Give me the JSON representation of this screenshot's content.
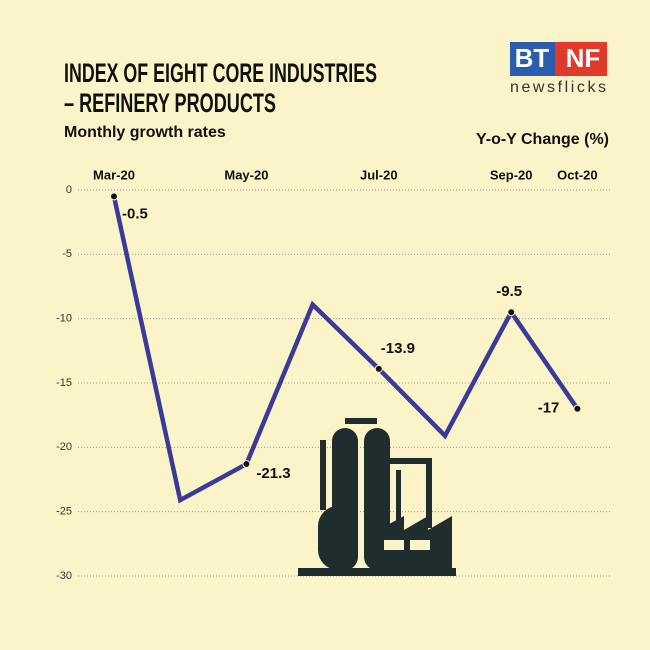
{
  "chart_data": {
    "type": "line",
    "title": [
      "INDEX OF EIGHT CORE INDUSTRIES",
      "– REFINERY PRODUCTS"
    ],
    "subtitle": "Monthly growth rates",
    "y_label": "Y-o-Y Change (%)",
    "logo": {
      "left": "BT",
      "right": "NF",
      "tagline": "newsflicks"
    },
    "categories": [
      "Mar-20",
      null,
      "May-20",
      null,
      "Jul-20",
      null,
      "Sep-20",
      "Oct-20"
    ],
    "series": [
      {
        "name": "Refinery products",
        "color": "#3a3a98",
        "values": [
          -0.5,
          -24.1,
          -21.3,
          -8.9,
          -13.9,
          -19.1,
          -9.5,
          -17
        ],
        "value_labels": [
          "-0.5",
          null,
          "-21.3",
          null,
          "-13.9",
          null,
          "-9.5",
          "-17"
        ]
      }
    ],
    "ylim": [
      -30,
      0
    ],
    "yticks": [
      0,
      -5,
      -10,
      -15,
      -20,
      -25,
      -30
    ],
    "grid": true
  }
}
